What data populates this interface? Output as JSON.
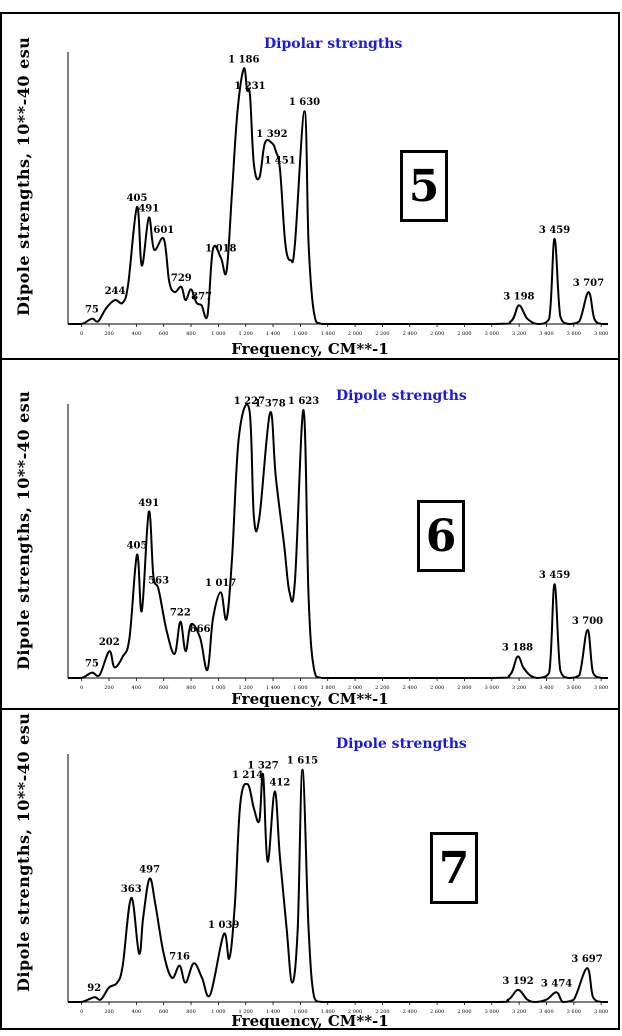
{
  "chart_data": [
    {
      "type": "line",
      "title": "Dipolar strengths",
      "xlabel": "Frequency, CM**-1",
      "ylabel": "Dipole strengths, 10**-40 esu",
      "panel_number": "5",
      "xlim": [
        -100,
        3850
      ],
      "ylim": [
        0,
        100
      ],
      "x_ticks": [
        "0",
        "200",
        "400",
        "600",
        "800",
        "1 000",
        "1 200",
        "1 400",
        "1 600",
        "1 800",
        "2 000",
        "2 200",
        "2 400",
        "2 600",
        "2 800",
        "3 000",
        "3 200",
        "3 400",
        "3 600",
        "3 800"
      ],
      "x": [
        -100,
        0,
        75,
        120,
        180,
        244,
        300,
        340,
        405,
        440,
        491,
        530,
        601,
        640,
        680,
        729,
        760,
        800,
        840,
        877,
        920,
        960,
        1018,
        1060,
        1100,
        1140,
        1186,
        1210,
        1231,
        1260,
        1300,
        1340,
        1392,
        1420,
        1451,
        1490,
        1530,
        1560,
        1630,
        1660,
        1700,
        1760,
        2000,
        3000,
        3140,
        3198,
        3260,
        3340,
        3420,
        3459,
        3500,
        3560,
        3640,
        3707,
        3750,
        3800,
        3850
      ],
      "y": [
        0,
        0,
        2,
        1,
        6,
        9,
        8,
        15,
        44,
        22,
        40,
        28,
        32,
        16,
        12,
        14,
        9,
        13,
        8,
        7,
        3,
        28,
        25,
        20,
        50,
        80,
        96,
        88,
        86,
        60,
        55,
        68,
        68,
        65,
        58,
        30,
        24,
        30,
        80,
        30,
        4,
        0,
        0,
        0,
        1,
        7,
        2,
        0,
        2,
        32,
        3,
        0,
        1,
        12,
        2,
        0,
        0
      ],
      "annotations": [
        {
          "x": 75,
          "y": 2,
          "label": "75"
        },
        {
          "x": 244,
          "y": 9,
          "label": "244"
        },
        {
          "x": 405,
          "y": 44,
          "label": "405"
        },
        {
          "x": 491,
          "y": 40,
          "label": "491"
        },
        {
          "x": 601,
          "y": 32,
          "label": "601"
        },
        {
          "x": 729,
          "y": 14,
          "label": "729"
        },
        {
          "x": 877,
          "y": 7,
          "label": "877"
        },
        {
          "x": 1018,
          "y": 25,
          "label": "1 018"
        },
        {
          "x": 1186,
          "y": 96,
          "label": "1 186"
        },
        {
          "x": 1231,
          "y": 86,
          "label": "1 231"
        },
        {
          "x": 1392,
          "y": 68,
          "label": "1 392"
        },
        {
          "x": 1451,
          "y": 58,
          "label": "1 451"
        },
        {
          "x": 1630,
          "y": 80,
          "label": "1 630"
        },
        {
          "x": 3198,
          "y": 7,
          "label": "3 198"
        },
        {
          "x": 3459,
          "y": 32,
          "label": "3 459"
        },
        {
          "x": 3707,
          "y": 12,
          "label": "3 707"
        }
      ]
    },
    {
      "type": "line",
      "title": "Dipole strengths",
      "xlabel": "Frequency, CM**-1",
      "ylabel": "Dipole strengths, 10**-40 esu",
      "panel_number": "6",
      "xlim": [
        -100,
        3850
      ],
      "ylim": [
        0,
        100
      ],
      "x_ticks": [
        "0",
        "200",
        "400",
        "600",
        "800",
        "1 000",
        "1 200",
        "1 400",
        "1 600",
        "1 800",
        "2 000",
        "2 200",
        "2 400",
        "2 600",
        "2 800",
        "3 000",
        "3 200",
        "3 400",
        "3 600",
        "3 800"
      ],
      "x": [
        -100,
        0,
        75,
        130,
        202,
        240,
        300,
        350,
        405,
        440,
        491,
        525,
        563,
        620,
        680,
        722,
        760,
        800,
        866,
        920,
        960,
        1017,
        1060,
        1100,
        1150,
        1227,
        1260,
        1300,
        1378,
        1420,
        1480,
        1520,
        1560,
        1623,
        1660,
        1700,
        1760,
        2000,
        3000,
        3130,
        3188,
        3230,
        3280,
        3340,
        3420,
        3459,
        3500,
        3560,
        3640,
        3700,
        3740,
        3800,
        3850
      ],
      "y": [
        0,
        0,
        2,
        1,
        10,
        4,
        8,
        15,
        46,
        25,
        62,
        38,
        33,
        18,
        9,
        21,
        10,
        20,
        15,
        3,
        22,
        32,
        22,
        45,
        90,
        100,
        60,
        60,
        99,
        75,
        50,
        32,
        36,
        100,
        30,
        3,
        0,
        0,
        0,
        1,
        8,
        4,
        1,
        0,
        2,
        35,
        3,
        0,
        1,
        18,
        2,
        0,
        0
      ],
      "annotations": [
        {
          "x": 75,
          "y": 2,
          "label": "75"
        },
        {
          "x": 202,
          "y": 10,
          "label": "202"
        },
        {
          "x": 405,
          "y": 46,
          "label": "405"
        },
        {
          "x": 491,
          "y": 62,
          "label": "491"
        },
        {
          "x": 563,
          "y": 33,
          "label": "563"
        },
        {
          "x": 722,
          "y": 21,
          "label": "722"
        },
        {
          "x": 866,
          "y": 15,
          "label": "866"
        },
        {
          "x": 1017,
          "y": 32,
          "label": "1 017"
        },
        {
          "x": 1227,
          "y": 100,
          "label": "1 227"
        },
        {
          "x": 1378,
          "y": 99,
          "label": "1 378"
        },
        {
          "x": 1623,
          "y": 100,
          "label": "1 623"
        },
        {
          "x": 3188,
          "y": 8,
          "label": "3 188"
        },
        {
          "x": 3459,
          "y": 35,
          "label": "3 459"
        },
        {
          "x": 3700,
          "y": 18,
          "label": "3 700"
        }
      ]
    },
    {
      "type": "line",
      "title": "Dipole strengths",
      "xlabel": "Frequency, CM**-1",
      "ylabel": "Dipole strengths, 10**-40 esu",
      "panel_number": "7",
      "xlim": [
        -100,
        3850
      ],
      "ylim": [
        0,
        100
      ],
      "x_ticks": [
        "0",
        "200",
        "400",
        "600",
        "800",
        "1 000",
        "1 200",
        "1 400",
        "1 600",
        "1 800",
        "2 000",
        "2 200",
        "2 400",
        "2 600",
        "2 800",
        "3 000",
        "3 200",
        "3 400",
        "3 600",
        "3 800"
      ],
      "x": [
        -100,
        0,
        92,
        140,
        200,
        260,
        300,
        363,
        420,
        450,
        497,
        540,
        600,
        660,
        716,
        760,
        820,
        880,
        940,
        1039,
        1080,
        1120,
        1160,
        1214,
        1260,
        1300,
        1327,
        1360,
        1412,
        1450,
        1500,
        1540,
        1580,
        1615,
        1660,
        1700,
        1760,
        2000,
        3000,
        3120,
        3192,
        3260,
        3320,
        3400,
        3474,
        3520,
        3600,
        3697,
        3740,
        3800,
        3850
      ],
      "y": [
        0,
        0,
        2,
        1,
        6,
        8,
        15,
        43,
        20,
        35,
        51,
        40,
        20,
        10,
        15,
        8,
        16,
        10,
        3,
        28,
        18,
        40,
        82,
        90,
        80,
        75,
        94,
        58,
        87,
        60,
        30,
        8,
        30,
        96,
        30,
        2,
        0,
        0,
        0,
        1,
        5,
        1,
        0,
        1,
        4,
        0,
        1,
        14,
        2,
        0,
        0
      ],
      "annotations": [
        {
          "x": 92,
          "y": 2,
          "label": "92"
        },
        {
          "x": 363,
          "y": 43,
          "label": "363"
        },
        {
          "x": 497,
          "y": 51,
          "label": "497"
        },
        {
          "x": 716,
          "y": 15,
          "label": "716"
        },
        {
          "x": 1039,
          "y": 28,
          "label": "1 039"
        },
        {
          "x": 1214,
          "y": 90,
          "label": "1 214"
        },
        {
          "x": 1327,
          "y": 94,
          "label": "1 327"
        },
        {
          "x": 1412,
          "y": 87,
          "label": "1 412"
        },
        {
          "x": 1615,
          "y": 96,
          "label": "1 615"
        },
        {
          "x": 3192,
          "y": 5,
          "label": "3 192"
        },
        {
          "x": 3474,
          "y": 4,
          "label": "3 474"
        },
        {
          "x": 3697,
          "y": 14,
          "label": "3 697"
        }
      ]
    }
  ]
}
